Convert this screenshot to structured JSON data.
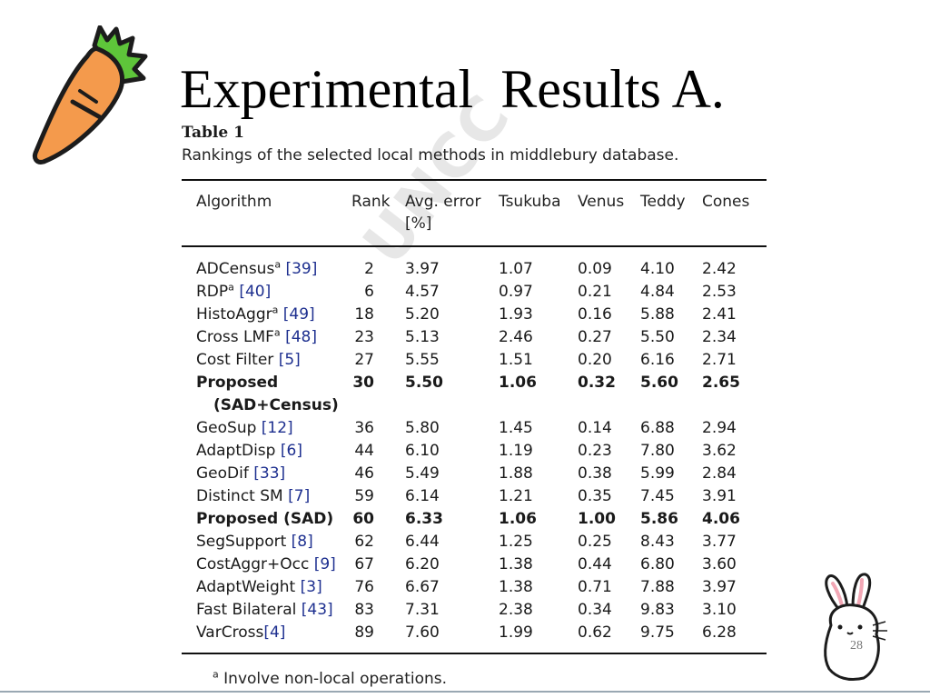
{
  "slide": {
    "title": "Experimental  Results A.",
    "page_number": "28"
  },
  "watermark": {
    "text": "UNCC"
  },
  "table": {
    "label": "Table 1",
    "caption": "Rankings of the selected local methods in middlebury database.",
    "headers": {
      "algorithm": "Algorithm",
      "rank": "Rank",
      "avg_error_line1": "Avg. error",
      "avg_error_line2": "[%]",
      "tsukuba": "Tsukuba",
      "venus": "Venus",
      "teddy": "Teddy",
      "cones": "Cones"
    },
    "rows": [
      {
        "name": "ADCensus",
        "sup": "a",
        "ref": "[39]",
        "rank": "2",
        "avg": "3.97",
        "tsukuba": "1.07",
        "venus": "0.09",
        "teddy": "4.10",
        "cones": "2.42"
      },
      {
        "name": "RDP",
        "sup": "a",
        "ref": "[40]",
        "rank": "6",
        "avg": "4.57",
        "tsukuba": "0.97",
        "venus": "0.21",
        "teddy": "4.84",
        "cones": "2.53"
      },
      {
        "name": "HistoAggr",
        "sup": "a",
        "ref": "[49]",
        "rank": "18",
        "avg": "5.20",
        "tsukuba": "1.93",
        "venus": "0.16",
        "teddy": "5.88",
        "cones": "2.41"
      },
      {
        "name": "Cross LMF",
        "sup": "a",
        "ref": "[48]",
        "rank": "23",
        "avg": "5.13",
        "tsukuba": "2.46",
        "venus": "0.27",
        "teddy": "5.50",
        "cones": "2.34"
      },
      {
        "name": "Cost Filter",
        "sup": "",
        "ref": "[5]",
        "rank": "27",
        "avg": "5.55",
        "tsukuba": "1.51",
        "venus": "0.20",
        "teddy": "6.16",
        "cones": "2.71"
      },
      {
        "name": "Proposed",
        "name_line2": "(SAD+Census)",
        "sup": "",
        "ref": "",
        "rank": "30",
        "avg": "5.50",
        "tsukuba": "1.06",
        "venus": "0.32",
        "teddy": "5.60",
        "cones": "2.65",
        "bold": true
      },
      {
        "name": "GeoSup",
        "sup": "",
        "ref": "[12]",
        "rank": "36",
        "avg": "5.80",
        "tsukuba": "1.45",
        "venus": "0.14",
        "teddy": "6.88",
        "cones": "2.94"
      },
      {
        "name": "AdaptDisp",
        "sup": "",
        "ref": "[6]",
        "rank": "44",
        "avg": "6.10",
        "tsukuba": "1.19",
        "venus": "0.23",
        "teddy": "7.80",
        "cones": "3.62"
      },
      {
        "name": "GeoDif",
        "sup": "",
        "ref": "[33]",
        "rank": "46",
        "avg": "5.49",
        "tsukuba": "1.88",
        "venus": "0.38",
        "teddy": "5.99",
        "cones": "2.84"
      },
      {
        "name": "Distinct SM",
        "sup": "",
        "ref": "[7]",
        "rank": "59",
        "avg": "6.14",
        "tsukuba": "1.21",
        "venus": "0.35",
        "teddy": "7.45",
        "cones": "3.91"
      },
      {
        "name": "Proposed (SAD)",
        "sup": "",
        "ref": "",
        "rank": "60",
        "avg": "6.33",
        "tsukuba": "1.06",
        "venus": "1.00",
        "teddy": "5.86",
        "cones": "4.06",
        "bold": true
      },
      {
        "name": "SegSupport",
        "sup": "",
        "ref": "[8]",
        "rank": "62",
        "avg": "6.44",
        "tsukuba": "1.25",
        "venus": "0.25",
        "teddy": "8.43",
        "cones": "3.77"
      },
      {
        "name": "CostAggr+Occ",
        "sup": "",
        "ref": "[9]",
        "rank": "67",
        "avg": "6.20",
        "tsukuba": "1.38",
        "venus": "0.44",
        "teddy": "6.80",
        "cones": "3.60"
      },
      {
        "name": "AdaptWeight",
        "sup": "",
        "ref": "[3]",
        "rank": "76",
        "avg": "6.67",
        "tsukuba": "1.38",
        "venus": "0.71",
        "teddy": "7.88",
        "cones": "3.97"
      },
      {
        "name": "Fast Bilateral",
        "sup": "",
        "ref": "[43]",
        "rank": "83",
        "avg": "7.31",
        "tsukuba": "2.38",
        "venus": "0.34",
        "teddy": "9.83",
        "cones": "3.10"
      },
      {
        "name": "VarCross",
        "sup": "",
        "ref": "[4]",
        "rank": "89",
        "avg": "7.60",
        "tsukuba": "1.99",
        "venus": "0.62",
        "teddy": "9.75",
        "cones": "6.28",
        "no_space": true
      }
    ],
    "footnote": {
      "marker": "a",
      "text": "Involve non-local operations."
    }
  },
  "colors": {
    "reference_link": "#1d2f8f",
    "carrot_orange": "#f49a4c",
    "carrot_leaves": "#5ec53a"
  },
  "icons": {
    "top_left": "carrot-icon",
    "bottom_right": "bunny-icon"
  }
}
